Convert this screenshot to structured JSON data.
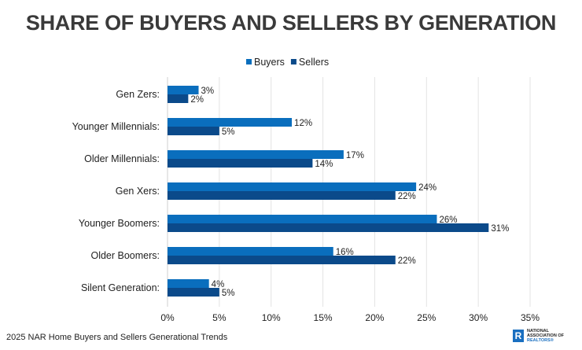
{
  "chart_data": {
    "type": "bar",
    "orientation": "horizontal",
    "title": "SHARE OF BUYERS AND SELLERS BY GENERATION",
    "categories": [
      "Gen Zers:",
      "Younger Millennials:",
      "Older Millennials:",
      "Gen Xers:",
      "Younger Boomers:",
      "Older Boomers:",
      "Silent Generation:"
    ],
    "series": [
      {
        "name": "Buyers",
        "color": "#0a6ebd",
        "values": [
          3,
          12,
          17,
          24,
          26,
          16,
          4
        ]
      },
      {
        "name": "Sellers",
        "color": "#0b4a8a",
        "values": [
          2,
          5,
          14,
          22,
          31,
          22,
          5
        ]
      }
    ],
    "xlim": [
      0,
      35
    ],
    "xticks": [
      "0%",
      "5%",
      "10%",
      "15%",
      "20%",
      "25%",
      "30%",
      "35%"
    ],
    "grid": true,
    "legend": "top",
    "value_suffix": "%"
  },
  "footer": {
    "source": "2025 NAR Home Buyers and Sellers Generational Trends",
    "logo_text": [
      "NATIONAL",
      "ASSOCIATION OF",
      "REALTORS®"
    ]
  }
}
